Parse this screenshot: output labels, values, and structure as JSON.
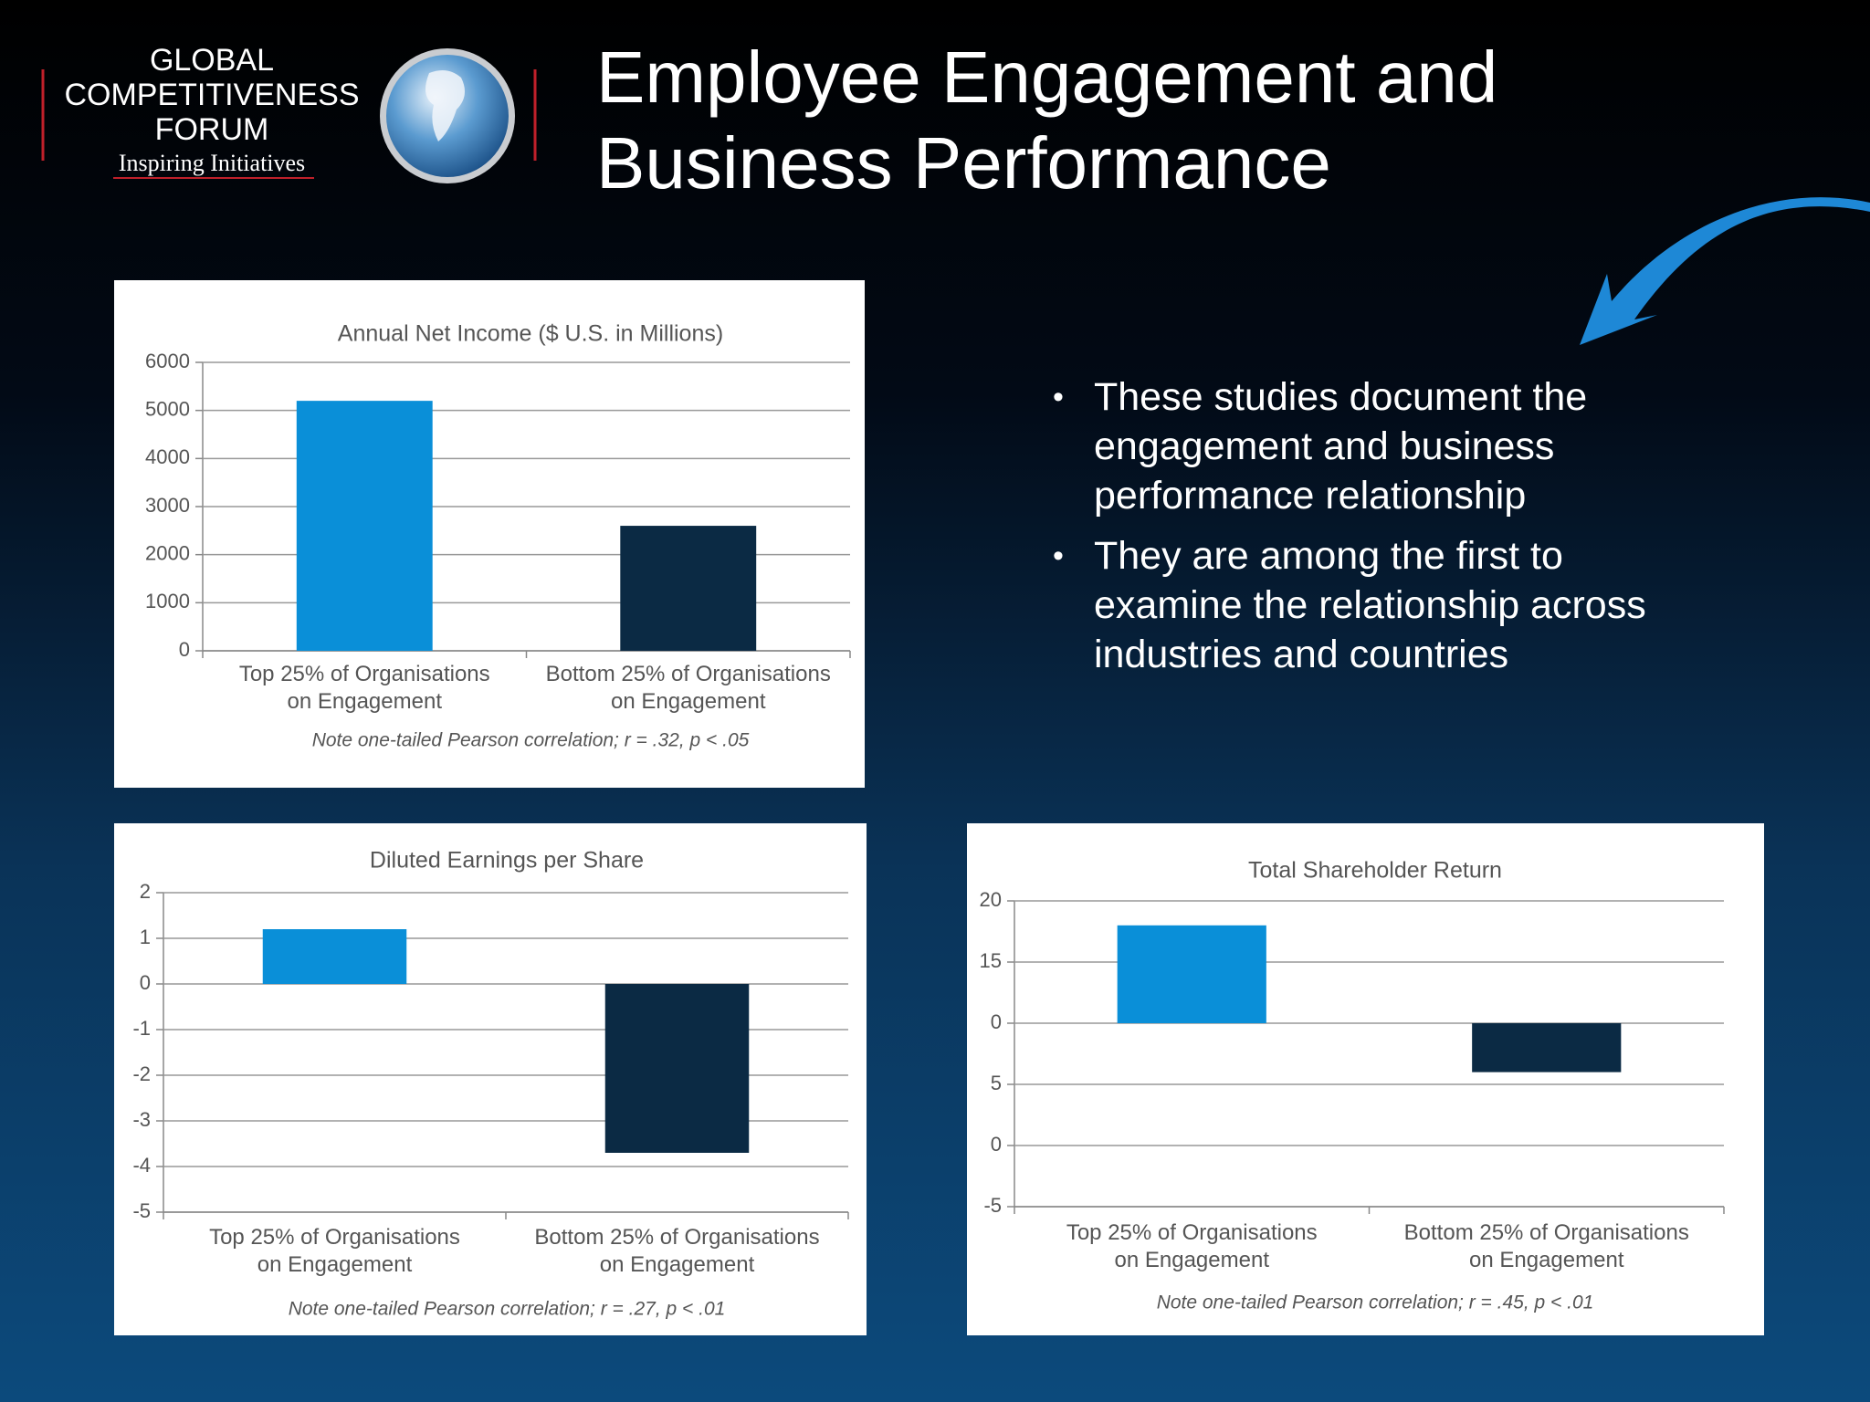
{
  "logo": {
    "lines": [
      "GLOBAL",
      "COMPETITIVENESS",
      "FORUM"
    ],
    "tagline": "Inspiring Initiatives"
  },
  "title": "Employee Engagement and Business Performance",
  "bullets": [
    "These studies document the engagement and business performance relationship",
    "They are among the first to examine the relationship across industries and countries"
  ],
  "chart_data": [
    {
      "type": "bar",
      "title": "Annual Net Income ($ U.S. in Millions)",
      "categories": [
        [
          "Top 25% of Organisations",
          "on Engagement"
        ],
        [
          "Bottom 25% of Organisations",
          "on Engagement"
        ]
      ],
      "values": [
        5200,
        2600
      ],
      "colors": [
        "#0a8fd8",
        "#0b2a44"
      ],
      "ylim": [
        0,
        6000
      ],
      "yticks": [
        0,
        1000,
        2000,
        3000,
        4000,
        5000,
        6000
      ],
      "grid": true,
      "note": "Note one-tailed Pearson correlation; r = .32, p < .05"
    },
    {
      "type": "bar",
      "title": "Diluted Earnings per Share",
      "categories": [
        [
          "Top 25% of Organisations",
          "on Engagement"
        ],
        [
          "Bottom 25% of Organisations",
          "on Engagement"
        ]
      ],
      "values": [
        1.2,
        -3.7
      ],
      "colors": [
        "#0a8fd8",
        "#0b2a44"
      ],
      "ylim": [
        -5,
        2
      ],
      "yticks": [
        -5,
        -4,
        -3,
        -2,
        -1,
        0,
        1,
        2
      ],
      "grid": true,
      "note": "Note one-tailed Pearson correlation; r = .27, p < .01"
    },
    {
      "type": "bar",
      "title": "Total Shareholder Return",
      "categories": [
        [
          "Top 25% of Organisations",
          "on Engagement"
        ],
        [
          "Bottom 25% of Organisations",
          "on Engagement"
        ]
      ],
      "values": [
        18,
        6
      ],
      "baseline": 10,
      "colors": [
        "#0a8fd8",
        "#0b2a44"
      ],
      "ylim": [
        -5,
        20
      ],
      "yticks": [
        -5,
        {
          "value": 0,
          "label": "0"
        },
        5,
        {
          "value": 10,
          "label": "0"
        },
        15,
        20
      ],
      "grid": true,
      "note": "Note one-tailed Pearson correlation; r = .45, p < .01"
    }
  ]
}
